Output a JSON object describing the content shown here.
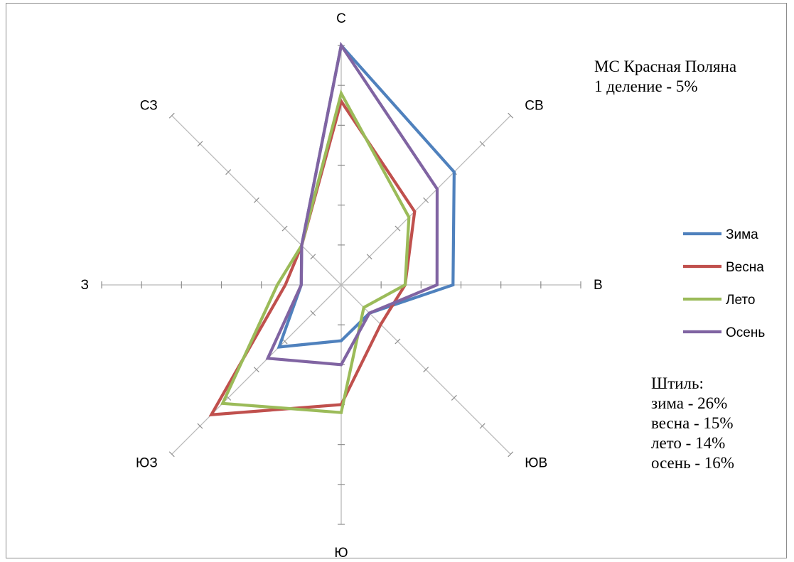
{
  "chart_data": {
    "type": "radar",
    "directions": [
      "С",
      "СВ",
      "В",
      "ЮВ",
      "Ю",
      "ЮЗ",
      "З",
      "СЗ"
    ],
    "axis_max": 30,
    "division": 5,
    "series": [
      {
        "name": "Зима",
        "color": "#4f81bd",
        "values": [
          30,
          20,
          14,
          5,
          7,
          11,
          5,
          7
        ]
      },
      {
        "name": "Весна",
        "color": "#c0504d",
        "values": [
          23,
          13,
          8,
          7,
          15,
          23,
          7,
          7
        ]
      },
      {
        "name": "Лето",
        "color": "#9bbb59",
        "values": [
          24,
          12,
          8,
          4,
          16,
          21,
          8,
          7
        ]
      },
      {
        "name": "Осень",
        "color": "#8064a2",
        "values": [
          30,
          17,
          12,
          5,
          10,
          13,
          5,
          7
        ]
      }
    ],
    "legend_position": "right",
    "grid": false
  },
  "annotations": {
    "station": "МС Красная Поляна",
    "scale": "1 деление - 5%",
    "calm_title": "Штиль:",
    "calm_lines": [
      "зима - 26%",
      "весна - 15%",
      "лето - 14%",
      "осень - 16%"
    ]
  }
}
